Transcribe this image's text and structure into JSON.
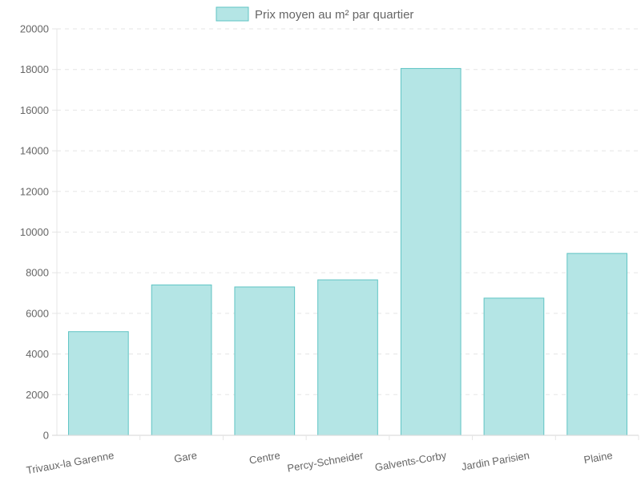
{
  "chart_data": {
    "type": "bar",
    "legend": {
      "label": "Prix moyen au m² par quartier",
      "position": "top"
    },
    "categories": [
      "Trivaux-la Garenne",
      "Gare",
      "Centre",
      "Percy-Schneider",
      "Galvents-Corby",
      "Jardin Parisien",
      "Plaine"
    ],
    "series": [
      {
        "name": "Prix moyen au m² par quartier",
        "values": [
          5100,
          7400,
          7300,
          7650,
          18050,
          6750,
          8950
        ]
      }
    ],
    "ylim": [
      0,
      20000
    ],
    "y_ticks": [
      0,
      2000,
      4000,
      6000,
      8000,
      10000,
      12000,
      14000,
      16000,
      18000,
      20000
    ],
    "grid": true,
    "colors": {
      "bar_fill": "#b4e5e5",
      "bar_stroke": "#5fc4c4",
      "grid": "#e5e5e5",
      "text": "#666666"
    }
  }
}
